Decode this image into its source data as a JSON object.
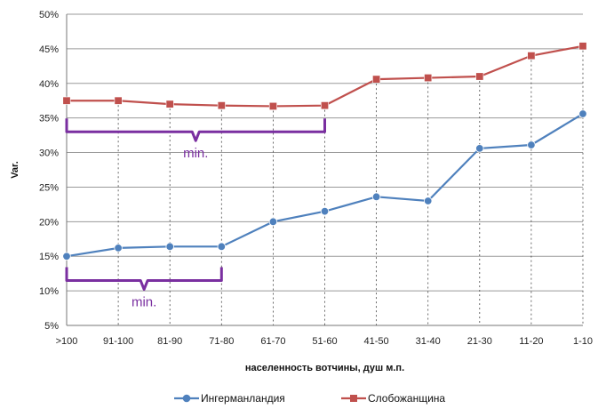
{
  "chart_data": {
    "type": "line",
    "categories": [
      ">100",
      "91-100",
      "81-90",
      "71-80",
      "61-70",
      "51-60",
      "41-50",
      "31-40",
      "21-30",
      "11-20",
      "1-10"
    ],
    "series": [
      {
        "name": "Ингерманландия",
        "color": "#4f81bd",
        "marker": "circle",
        "values": [
          15.0,
          16.2,
          16.4,
          16.4,
          20.0,
          21.5,
          23.6,
          23.0,
          30.6,
          31.1,
          35.6
        ]
      },
      {
        "name": "Слобожанщина",
        "color": "#c0504d",
        "marker": "square",
        "values": [
          37.5,
          37.5,
          37.0,
          36.8,
          36.7,
          36.8,
          40.6,
          40.8,
          41.0,
          44.0,
          45.4
        ]
      }
    ],
    "xlabel": "населенность вотчины, душ м.п.",
    "ylabel": "Var.",
    "ylim": [
      5,
      50
    ],
    "yticks": [
      "5%",
      "10%",
      "15%",
      "20%",
      "25%",
      "30%",
      "35%",
      "40%",
      "45%",
      "50%"
    ],
    "grid": "horizontal solid, vertical dotted",
    "legend": "bottom",
    "annotations": [
      {
        "text": "min.",
        "color": "#7a2fa0",
        "from": ">100",
        "to": "51-60",
        "at": 33
      },
      {
        "text": "min.",
        "color": "#7a2fa0",
        "from": ">100",
        "to": "71-80",
        "at": 11.5
      }
    ]
  }
}
